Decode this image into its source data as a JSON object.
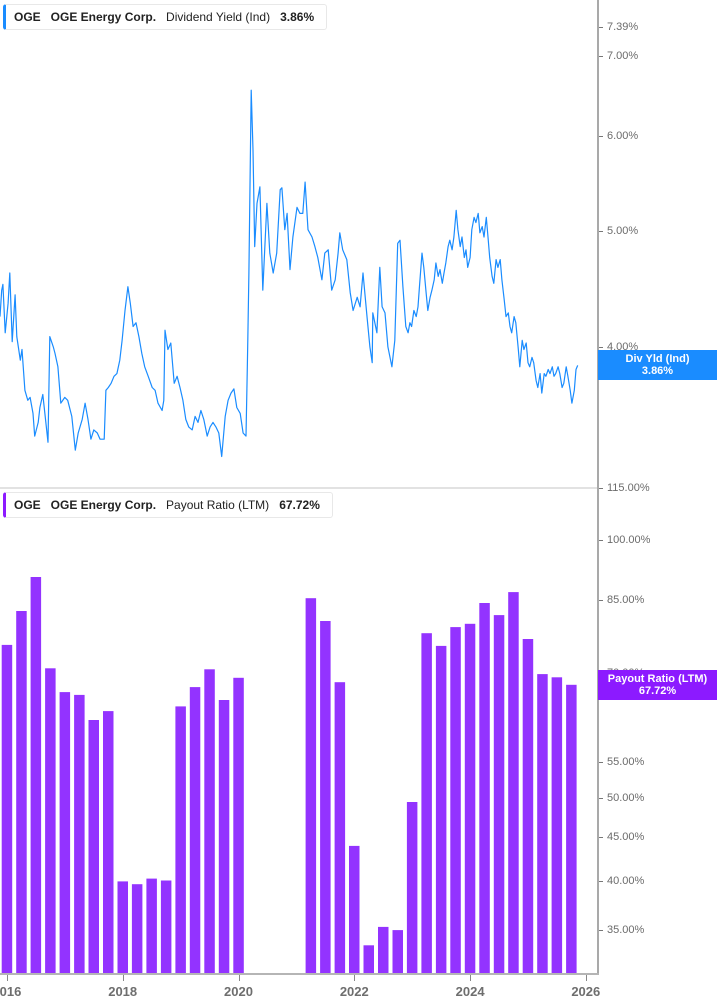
{
  "panels": {
    "top": {
      "legend": {
        "ticker": "OGE",
        "company": "OGE Energy Corp.",
        "metric": "Dividend Yield (Ind)",
        "value": "3.86%",
        "accent": "#1a8cff"
      },
      "tag": {
        "label": "Div Yld (Ind)",
        "value": "3.86%",
        "numeric": 3.86,
        "color": "#1a8cff"
      }
    },
    "bottom": {
      "legend": {
        "ticker": "OGE",
        "company": "OGE Energy Corp.",
        "metric": "Payout Ratio (LTM)",
        "value": "67.72%",
        "accent": "#8c1aff"
      },
      "tag": {
        "label": "Payout Ratio (LTM)",
        "value": "67.72%",
        "numeric": 67.72,
        "color": "#8c1aff"
      }
    }
  },
  "x_axis": {
    "ticks": [
      2016,
      2018,
      2020,
      2022,
      2024,
      2026
    ],
    "labels": [
      "2016",
      "2018",
      "2020",
      "2022",
      "2024",
      "2026"
    ]
  },
  "chart_data": [
    {
      "type": "line",
      "title": "OGE Energy Corp. Dividend Yield (Ind)",
      "xlabel": "",
      "ylabel": "Dividend Yield (Ind)",
      "yscale": "log",
      "xlim": [
        2015.88,
        2026.21
      ],
      "ylim": [
        3.05,
        7.79
      ],
      "yticks": [
        7.39,
        7.0,
        6.0,
        5.0,
        4.0
      ],
      "ytick_labels": [
        "7.39%",
        "7.00%",
        "6.00%",
        "5.00%",
        "4.00%"
      ],
      "grid": false,
      "legend_position": "top-left",
      "last_value": 3.86,
      "series": [
        {
          "name": "Dividend Yield (Ind)",
          "color": "#1a8cff",
          "x": [
            2015.88,
            2015.91,
            2015.93,
            2015.97,
            2016.02,
            2016.05,
            2016.09,
            2016.14,
            2016.17,
            2016.23,
            2016.26,
            2016.31,
            2016.36,
            2016.4,
            2016.45,
            2016.48,
            2016.54,
            2016.57,
            2016.62,
            2016.66,
            2016.71,
            2016.74,
            2016.8,
            2016.83,
            2016.88,
            2016.93,
            2017.0,
            2017.05,
            2017.12,
            2017.18,
            2017.23,
            2017.3,
            2017.35,
            2017.4,
            2017.45,
            2017.5,
            2017.56,
            2017.61,
            2017.68,
            2017.71,
            2017.75,
            2017.8,
            2017.85,
            2017.9,
            2017.95,
            2017.99,
            2018.04,
            2018.09,
            2018.13,
            2018.18,
            2018.23,
            2018.28,
            2018.33,
            2018.38,
            2018.44,
            2018.51,
            2018.56,
            2018.61,
            2018.68,
            2018.71,
            2018.73,
            2018.78,
            2018.83,
            2018.89,
            2018.94,
            2018.99,
            2019.04,
            2019.09,
            2019.14,
            2019.2,
            2019.25,
            2019.3,
            2019.35,
            2019.4,
            2019.46,
            2019.51,
            2019.56,
            2019.61,
            2019.66,
            2019.71,
            2019.77,
            2019.82,
            2019.87,
            2019.92,
            2019.97,
            2020.03,
            2020.08,
            2020.13,
            2020.15,
            2020.16,
            2020.18,
            2020.22,
            2020.25,
            2020.28,
            2020.32,
            2020.37,
            2020.42,
            2020.49,
            2020.54,
            2020.6,
            2020.66,
            2020.72,
            2020.75,
            2020.8,
            2020.84,
            2020.89,
            2020.94,
            2021.01,
            2021.06,
            2021.11,
            2021.15,
            2021.2,
            2021.27,
            2021.32,
            2021.37,
            2021.44,
            2021.49,
            2021.55,
            2021.61,
            2021.67,
            2021.72,
            2021.75,
            2021.8,
            2021.87,
            2021.93,
            2021.98,
            2022.05,
            2022.1,
            2022.15,
            2022.22,
            2022.27,
            2022.31,
            2022.32,
            2022.39,
            2022.44,
            2022.48,
            2022.53,
            2022.58,
            2022.65,
            2022.7,
            2022.75,
            2022.79,
            2022.84,
            2022.89,
            2022.93,
            2022.96,
            2022.99,
            2023.03,
            2023.07,
            2023.1,
            2023.13,
            2023.17,
            2023.2,
            2023.24,
            2023.27,
            2023.31,
            2023.34,
            2023.38,
            2023.41,
            2023.45,
            2023.48,
            2023.52,
            2023.55,
            2023.58,
            2023.62,
            2023.65,
            2023.69,
            2023.72,
            2023.76,
            2023.79,
            2023.83,
            2023.86,
            2023.9,
            2023.93,
            2023.96,
            2024.0,
            2024.03,
            2024.07,
            2024.1,
            2024.14,
            2024.17,
            2024.21,
            2024.24,
            2024.28,
            2024.31,
            2024.34,
            2024.38,
            2024.41,
            2024.45,
            2024.48,
            2024.52,
            2024.55,
            2024.59,
            2024.62,
            2024.66,
            2024.69,
            2024.72,
            2024.76,
            2024.79,
            2024.83,
            2024.86,
            2024.9,
            2024.93,
            2024.97,
            2025.0,
            2025.03,
            2025.07,
            2025.1,
            2025.14,
            2025.17,
            2025.21,
            2025.24,
            2025.28,
            2025.31,
            2025.35,
            2025.38,
            2025.42,
            2025.45,
            2025.48,
            2025.52,
            2025.55,
            2025.59,
            2025.62,
            2025.66,
            2025.69,
            2025.73,
            2025.76,
            2025.8,
            2025.83,
            2025.86
          ],
          "values": [
            4.24,
            4.46,
            4.51,
            4.11,
            4.35,
            4.61,
            4.04,
            4.42,
            4.08,
            3.9,
            3.98,
            3.68,
            3.61,
            3.63,
            3.52,
            3.37,
            3.46,
            3.56,
            3.65,
            3.5,
            3.33,
            4.08,
            4.0,
            3.95,
            3.85,
            3.59,
            3.63,
            3.61,
            3.5,
            3.28,
            3.39,
            3.48,
            3.59,
            3.48,
            3.35,
            3.41,
            3.39,
            3.35,
            3.35,
            3.68,
            3.7,
            3.73,
            3.78,
            3.8,
            3.9,
            4.05,
            4.29,
            4.49,
            4.35,
            4.16,
            4.19,
            4.08,
            3.95,
            3.85,
            3.78,
            3.7,
            3.68,
            3.59,
            3.54,
            3.61,
            4.13,
            3.98,
            4.03,
            3.73,
            3.78,
            3.7,
            3.61,
            3.48,
            3.43,
            3.41,
            3.5,
            3.46,
            3.54,
            3.48,
            3.37,
            3.43,
            3.46,
            3.43,
            3.39,
            3.24,
            3.5,
            3.61,
            3.66,
            3.69,
            3.56,
            3.52,
            3.39,
            3.37,
            3.8,
            4.05,
            4.61,
            6.55,
            5.84,
            4.85,
            5.27,
            5.44,
            4.46,
            5.27,
            4.79,
            4.61,
            4.79,
            5.41,
            5.43,
            5.01,
            5.17,
            4.64,
            4.94,
            5.23,
            5.17,
            5.17,
            5.49,
            5.01,
            4.94,
            4.85,
            4.75,
            4.55,
            4.79,
            4.82,
            4.46,
            4.55,
            4.79,
            4.98,
            4.82,
            4.73,
            4.44,
            4.29,
            4.4,
            4.32,
            4.61,
            4.24,
            4.0,
            3.88,
            4.27,
            4.11,
            4.66,
            4.32,
            4.27,
            4.0,
            3.85,
            4.05,
            4.88,
            4.91,
            4.49,
            4.16,
            4.11,
            4.19,
            4.16,
            4.29,
            4.24,
            4.32,
            4.52,
            4.79,
            4.66,
            4.44,
            4.29,
            4.4,
            4.46,
            4.55,
            4.7,
            4.58,
            4.64,
            4.52,
            4.61,
            4.7,
            4.85,
            4.91,
            4.82,
            4.94,
            5.2,
            5.01,
            4.85,
            4.94,
            4.75,
            4.82,
            4.66,
            4.75,
            5.01,
            5.13,
            5.08,
            5.17,
            4.98,
            5.04,
            4.94,
            5.13,
            4.94,
            4.75,
            4.58,
            4.52,
            4.73,
            4.66,
            4.73,
            4.55,
            4.38,
            4.24,
            4.27,
            4.16,
            4.11,
            4.24,
            4.19,
            4.0,
            3.85,
            4.05,
            3.98,
            4.03,
            3.88,
            3.85,
            3.92,
            3.88,
            3.75,
            3.7,
            3.8,
            3.66,
            3.8,
            3.78,
            3.83,
            3.8,
            3.85,
            3.78,
            3.8,
            3.85,
            3.8,
            3.7,
            3.73,
            3.85,
            3.78,
            3.68,
            3.59,
            3.68,
            3.83,
            3.86
          ]
        }
      ]
    },
    {
      "type": "bar",
      "title": "OGE Energy Corp. Payout Ratio (LTM)",
      "xlabel": "",
      "ylabel": "Payout Ratio (LTM)",
      "yscale": "log",
      "xlim": [
        2015.88,
        2026.21
      ],
      "ylim": [
        31.1,
        115.0
      ],
      "yticks": [
        115,
        100,
        85,
        70,
        55,
        50,
        45,
        40,
        35
      ],
      "ytick_labels": [
        "115.00%",
        "100.00%",
        "85.00%",
        "70.00%",
        "55.00%",
        "50.00%",
        "45.00%",
        "40.00%",
        "35.00%"
      ],
      "grid": false,
      "legend_position": "top-left",
      "last_value": 67.72,
      "series": [
        {
          "name": "Payout Ratio (LTM)",
          "color": "#9333ff",
          "x": [
            2016.0,
            2016.25,
            2016.5,
            2016.75,
            2017.0,
            2017.25,
            2017.5,
            2017.75,
            2018.0,
            2018.25,
            2018.5,
            2018.75,
            2019.0,
            2019.25,
            2019.5,
            2019.75,
            2020.0,
            2021.25,
            2021.5,
            2021.75,
            2022.0,
            2022.25,
            2022.5,
            2022.75,
            2023.0,
            2023.25,
            2023.5,
            2023.75,
            2024.0,
            2024.25,
            2024.5,
            2024.75,
            2025.0,
            2025.25,
            2025.5,
            2025.75
          ],
          "values": [
            75.4,
            82.6,
            90.5,
            70.8,
            66.4,
            65.9,
            61.6,
            63.1,
            39.9,
            39.6,
            40.2,
            40.0,
            63.9,
            67.3,
            70.6,
            65.0,
            69.0,
            85.5,
            80.4,
            68.2,
            43.9,
            33.6,
            35.3,
            35.0,
            49.4,
            77.8,
            75.2,
            79.1,
            79.8,
            84.4,
            81.7,
            86.9,
            76.6,
            69.7,
            69.1,
            67.72
          ]
        }
      ]
    }
  ]
}
